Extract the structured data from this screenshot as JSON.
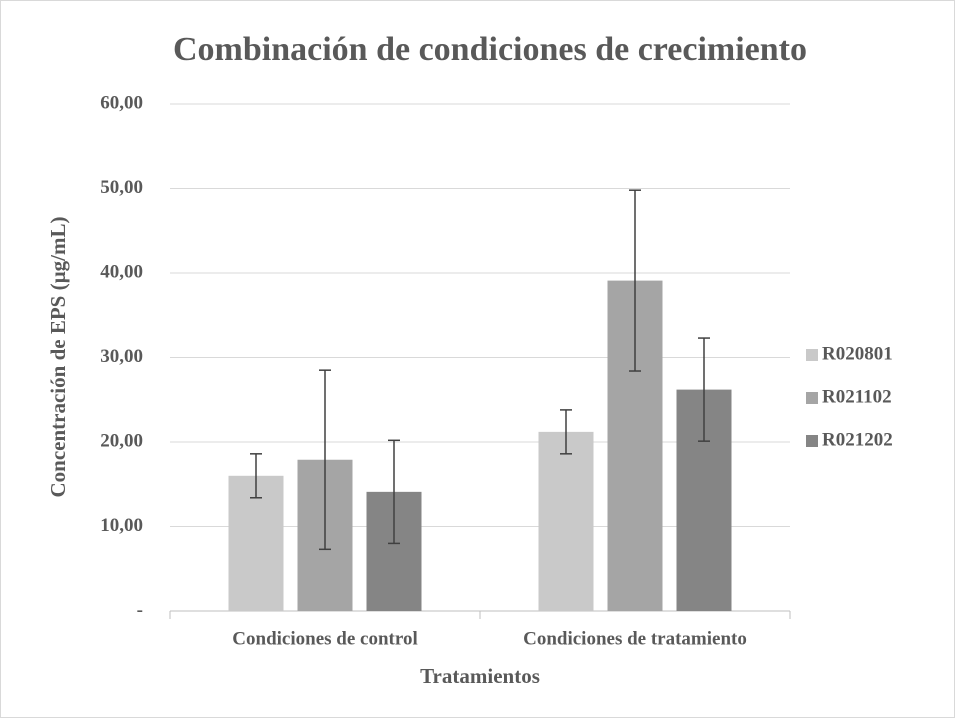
{
  "chart_data": {
    "type": "bar",
    "title": "Combinación de condiciones de crecimiento",
    "x_label": "Tratamientos",
    "y_label": "Concentración de EPS (µg/mL)",
    "categories": [
      "Condiciones de control",
      "Condiciones de tratamiento"
    ],
    "series": [
      {
        "name": "R020801",
        "color": "#c9c9c9",
        "values": [
          16.0,
          21.2
        ],
        "errors": [
          2.6,
          2.6
        ]
      },
      {
        "name": "R021102",
        "color": "#a5a5a5",
        "values": [
          17.9,
          39.1
        ],
        "errors": [
          10.6,
          10.7
        ]
      },
      {
        "name": "R021202",
        "color": "#858585",
        "values": [
          14.1,
          26.2
        ],
        "errors": [
          6.1,
          6.1
        ]
      }
    ],
    "ylim": [
      0,
      60
    ],
    "yticks": [
      {
        "value": 0,
        "label": "-"
      },
      {
        "value": 10,
        "label": "10,00"
      },
      {
        "value": 20,
        "label": "20,00"
      },
      {
        "value": 30,
        "label": "30,00"
      },
      {
        "value": 40,
        "label": "40,00"
      },
      {
        "value": 50,
        "label": "50,00"
      },
      {
        "value": 60,
        "label": "60,00"
      }
    ],
    "grid": true,
    "legend": "right"
  }
}
